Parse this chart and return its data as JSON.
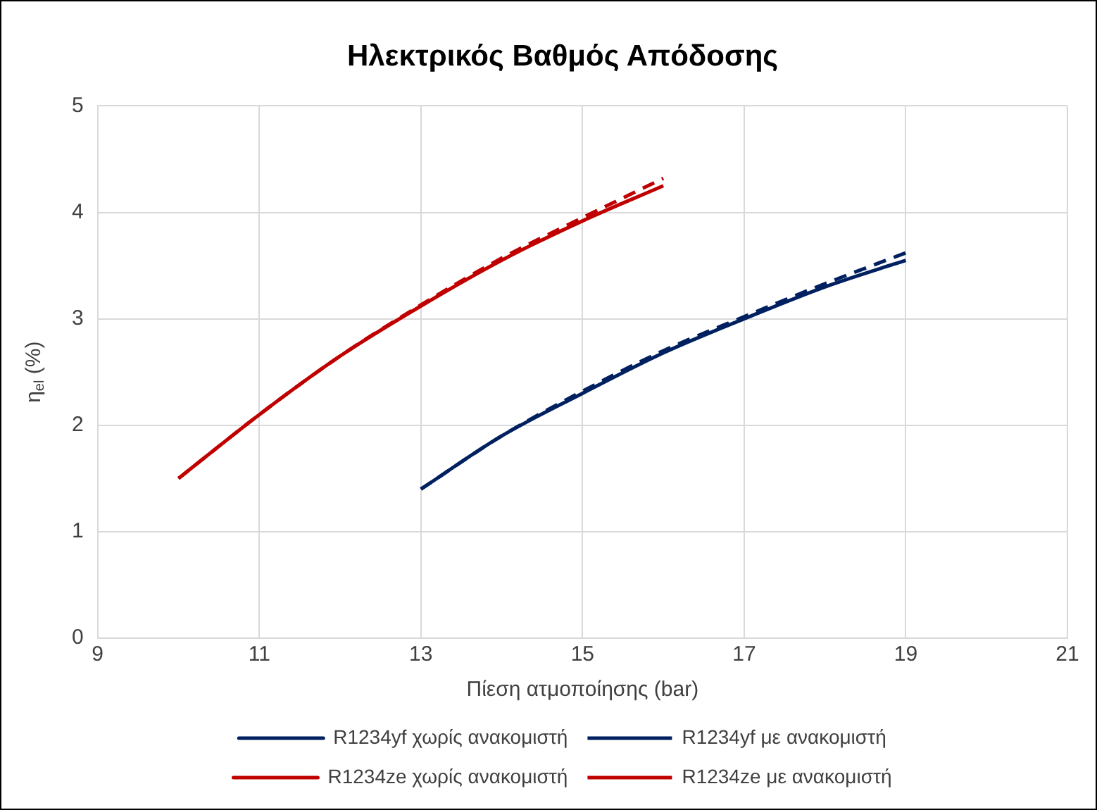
{
  "chart_data": {
    "type": "line",
    "title": "Ηλεκτρικός Βαθμός Απόδοσης",
    "xlabel": "Πίεση ατμοποίησης (bar)",
    "ylabel": "η$_{el}$ (%)",
    "xlim": [
      9,
      21
    ],
    "xticks": [
      9,
      11,
      13,
      15,
      17,
      19,
      21
    ],
    "ylim": [
      0,
      5
    ],
    "yticks": [
      0,
      1,
      2,
      3,
      4,
      5
    ],
    "grid": true,
    "legend": "bottom",
    "marker": "none",
    "series": [
      {
        "name": "R1234yf χωρίς ανακομιστή",
        "color": "#002060",
        "line_style": "solid",
        "x": [
          13,
          14,
          15,
          16,
          17,
          18,
          19
        ],
        "values": [
          1.4,
          1.9,
          2.3,
          2.68,
          3.0,
          3.3,
          3.55
        ]
      },
      {
        "name": "R1234yf με ανακομιστή",
        "color": "#002060",
        "line_style": "dashed",
        "x": [
          13,
          14,
          15,
          16,
          17,
          18,
          19
        ],
        "values": [
          1.4,
          1.9,
          2.32,
          2.7,
          3.02,
          3.33,
          3.62
        ]
      },
      {
        "name": "R1234ze χωρίς ανακομιστή",
        "color": "#c00000",
        "line_style": "solid",
        "x": [
          10,
          11,
          12,
          13,
          14,
          15,
          16
        ],
        "values": [
          1.5,
          2.1,
          2.65,
          3.12,
          3.55,
          3.92,
          4.25
        ]
      },
      {
        "name": "R1234ze με ανακομιστή",
        "color": "#c00000",
        "line_style": "dashed",
        "x": [
          10,
          11,
          12,
          13,
          14,
          15,
          16
        ],
        "values": [
          1.5,
          2.1,
          2.65,
          3.13,
          3.57,
          3.95,
          4.32
        ]
      }
    ]
  }
}
